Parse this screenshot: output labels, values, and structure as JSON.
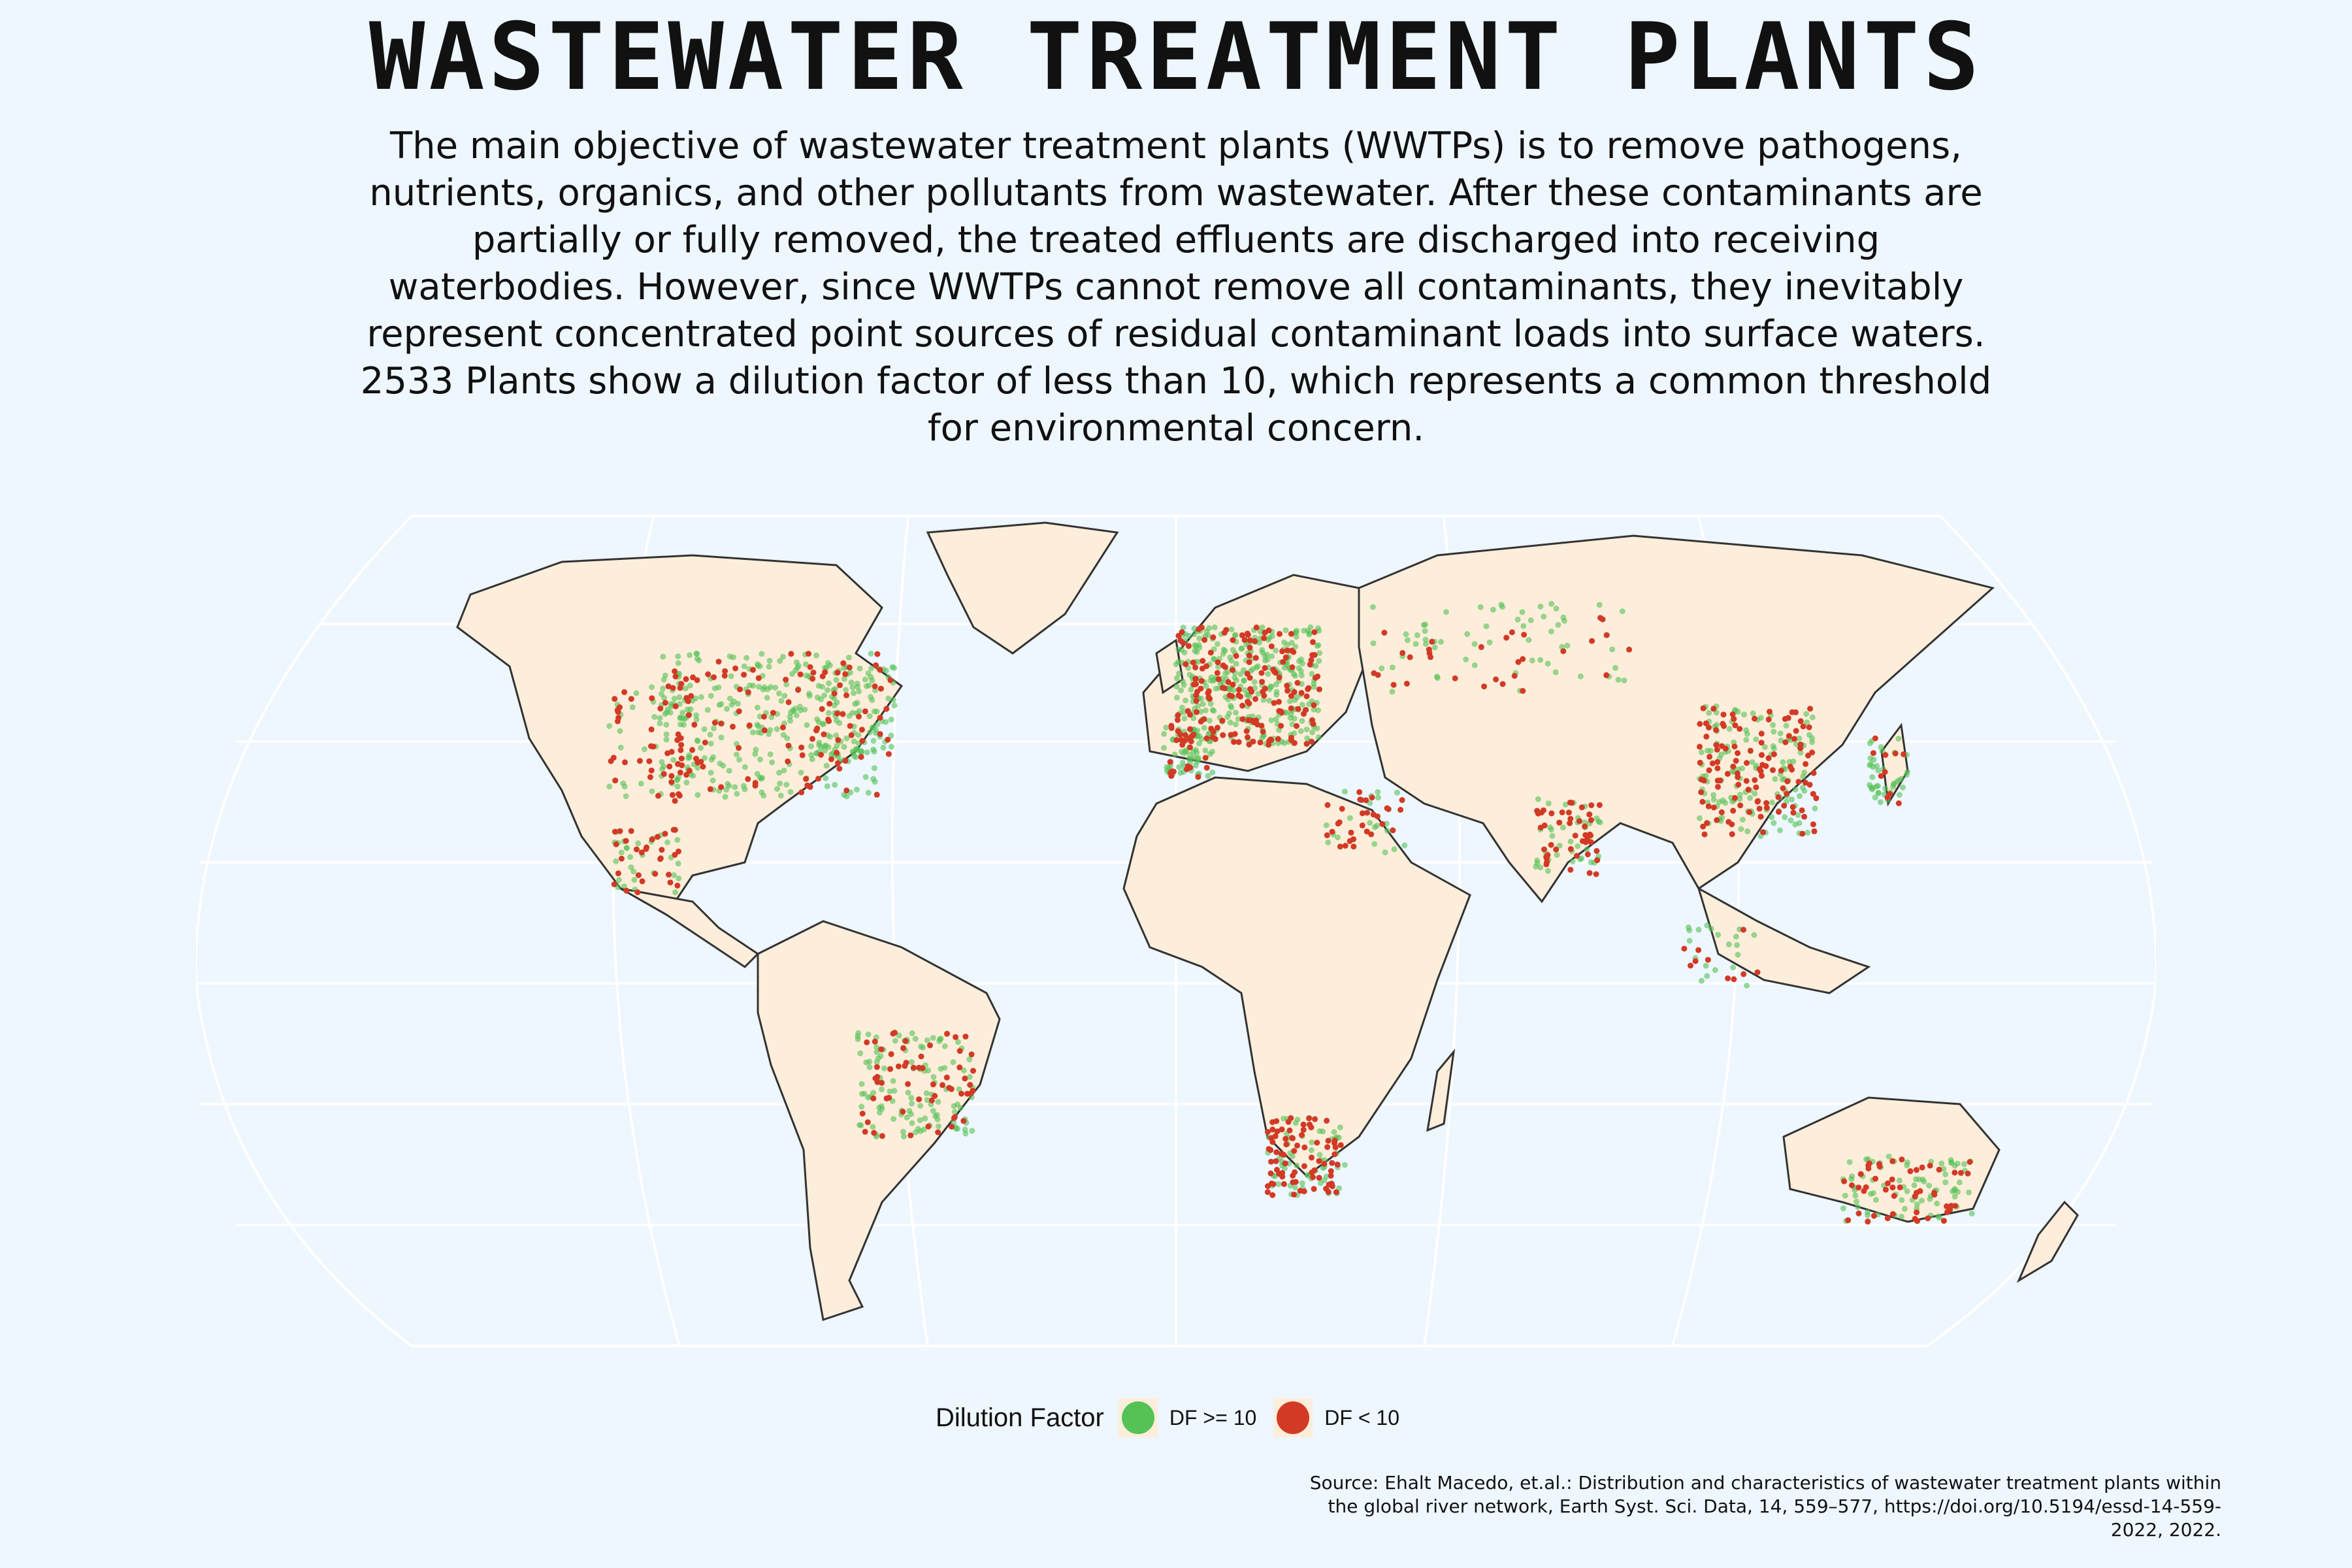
{
  "title": "WASTEWATER TREATMENT PLANTS",
  "subtitle": "The main objective of wastewater treatment plants (WWTPs) is to remove pathogens, nutrients, organics, and other pollutants from wastewater. After these contaminants are partially or fully removed, the treated effluents are discharged into receiving waterbodies. However, since WWTPs cannot remove all contaminants, they inevitably represent concentrated point sources of residual contaminant loads into surface waters. 2533 Plants show a dilution factor of less than 10, which represents a common threshold for environmental concern.",
  "legend": {
    "title": "Dilution Factor",
    "items": [
      {
        "label": "DF >= 10",
        "color": "#55c256"
      },
      {
        "label": "DF < 10",
        "color": "#d23a26"
      }
    ]
  },
  "source": "Source: Ehalt Macedo, et.al.: Distribution and characteristics of wastewater treatment plants within the global river network, Earth Syst. Sci. Data, 14, 559–577, https://doi.org/10.5194/essd-14-559-2022, 2022.",
  "map": {
    "projection": "robinson",
    "land_color": "#fdeedb",
    "ocean_color": "#eef6fe",
    "graticule_color": "#ffffff",
    "border_color": "#333333"
  }
}
